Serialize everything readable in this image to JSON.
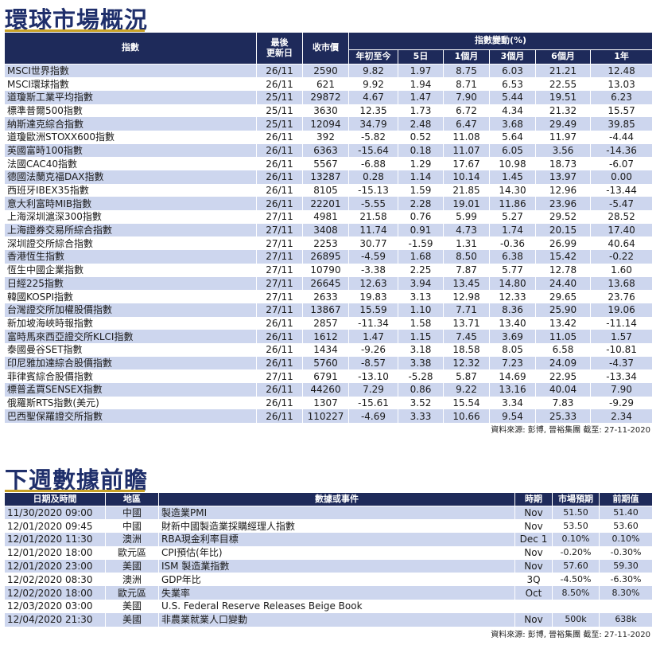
{
  "market": {
    "title": "環球市場概況",
    "headers": {
      "index": "指數",
      "updated_line1": "最後",
      "updated_line2": "更新日",
      "close": "收市價",
      "change_group": "指數變動(%)",
      "periods": [
        "年初至今",
        "5日",
        "1個月",
        "3個月",
        "6個月",
        "1年"
      ]
    },
    "rows": [
      [
        "MSCI世界指數",
        "26/11",
        "2590",
        "9.82",
        "1.97",
        "8.75",
        "6.03",
        "21.21",
        "12.48"
      ],
      [
        "MSCI環球指數",
        "26/11",
        "621",
        "9.92",
        "1.94",
        "8.71",
        "6.53",
        "22.55",
        "13.03"
      ],
      [
        "道瓊斯工業平均指數",
        "25/11",
        "29872",
        "4.67",
        "1.47",
        "7.90",
        "5.44",
        "19.51",
        "6.23"
      ],
      [
        "標準普爾500指數",
        "25/11",
        "3630",
        "12.35",
        "1.73",
        "6.72",
        "4.34",
        "21.32",
        "15.57"
      ],
      [
        "納斯達克綜合指數",
        "25/11",
        "12094",
        "34.79",
        "2.48",
        "6.47",
        "3.68",
        "29.49",
        "39.85"
      ],
      [
        "道瓊歐洲STOXX600指數",
        "26/11",
        "392",
        "-5.82",
        "0.52",
        "11.08",
        "5.64",
        "11.97",
        "-4.44"
      ],
      [
        "英國富時100指數",
        "26/11",
        "6363",
        "-15.64",
        "0.18",
        "11.07",
        "6.05",
        "3.56",
        "-14.36"
      ],
      [
        "法國CAC40指數",
        "26/11",
        "5567",
        "-6.88",
        "1.29",
        "17.67",
        "10.98",
        "18.73",
        "-6.07"
      ],
      [
        "德國法蘭克福DAX指數",
        "26/11",
        "13287",
        "0.28",
        "1.14",
        "10.14",
        "1.45",
        "13.97",
        "0.00"
      ],
      [
        "西班牙IBEX35指數",
        "26/11",
        "8105",
        "-15.13",
        "1.59",
        "21.85",
        "14.30",
        "12.96",
        "-13.44"
      ],
      [
        "意大利富時MIB指數",
        "26/11",
        "22201",
        "-5.55",
        "2.28",
        "19.01",
        "11.86",
        "23.96",
        "-5.47"
      ],
      [
        "上海深圳滬深300指數",
        "27/11",
        "4981",
        "21.58",
        "0.76",
        "5.99",
        "5.27",
        "29.52",
        "28.52"
      ],
      [
        "上海證券交易所綜合指數",
        "27/11",
        "3408",
        "11.74",
        "0.91",
        "4.73",
        "1.74",
        "20.15",
        "17.40"
      ],
      [
        "深圳證交所綜合指數",
        "27/11",
        "2253",
        "30.77",
        "-1.59",
        "1.31",
        "-0.36",
        "26.99",
        "40.64"
      ],
      [
        "香港恆生指數",
        "27/11",
        "26895",
        "-4.59",
        "1.68",
        "8.50",
        "6.38",
        "15.42",
        "-0.22"
      ],
      [
        "恆生中國企業指數",
        "27/11",
        "10790",
        "-3.38",
        "2.25",
        "7.87",
        "5.77",
        "12.78",
        "1.60"
      ],
      [
        "日經225指數",
        "27/11",
        "26645",
        "12.63",
        "3.94",
        "13.45",
        "14.80",
        "24.40",
        "13.68"
      ],
      [
        "韓國KOSPI指數",
        "27/11",
        "2633",
        "19.83",
        "3.13",
        "12.98",
        "12.33",
        "29.65",
        "23.76"
      ],
      [
        "台灣證交所加權股價指數",
        "27/11",
        "13867",
        "15.59",
        "1.10",
        "7.71",
        "8.36",
        "25.90",
        "19.06"
      ],
      [
        "新加坡海峽時報指數",
        "26/11",
        "2857",
        "-11.34",
        "1.58",
        "13.71",
        "13.40",
        "13.42",
        "-11.14"
      ],
      [
        "富時馬來西亞證交所KLCI指數",
        "26/11",
        "1612",
        "1.47",
        "1.15",
        "7.45",
        "3.69",
        "11.05",
        "1.57"
      ],
      [
        "泰國曼谷SET指數",
        "26/11",
        "1434",
        "-9.26",
        "3.18",
        "18.58",
        "8.05",
        "6.58",
        "-10.81"
      ],
      [
        "印尼雅加達綜合股價指數",
        "26/11",
        "5760",
        "-8.57",
        "3.38",
        "12.32",
        "7.23",
        "24.09",
        "-4.37"
      ],
      [
        "菲律賓綜合股價指數",
        "27/11",
        "6791",
        "-13.10",
        "-5.28",
        "5.87",
        "14.69",
        "22.95",
        "-13.34"
      ],
      [
        "標普孟買SENSEX指數",
        "26/11",
        "44260",
        "7.29",
        "0.86",
        "9.22",
        "13.16",
        "40.04",
        "7.90"
      ],
      [
        "俄羅斯RTS指數(美元)",
        "26/11",
        "1307",
        "-15.61",
        "3.52",
        "15.54",
        "3.34",
        "7.83",
        "-9.29"
      ],
      [
        "巴西聖保羅證交所指數",
        "26/11",
        "110227",
        "-4.69",
        "3.33",
        "10.66",
        "9.54",
        "25.33",
        "2.34"
      ]
    ],
    "source": "資料來源: 彭博, 晉裕集團 截至: 27-11-2020"
  },
  "events": {
    "title": "下週數據前瞻",
    "headers": [
      "日期及時間",
      "地區",
      "數據或事件",
      "時期",
      "市場預期",
      "前期值"
    ],
    "rows": [
      [
        "11/30/2020 09:00",
        "中國",
        "製造業PMI",
        "Nov",
        "51.50",
        "51.40"
      ],
      [
        "12/01/2020 09:45",
        "中國",
        "財新中國製造業採購經理人指數",
        "Nov",
        "53.50",
        "53.60"
      ],
      [
        "12/01/2020 11:30",
        "澳洲",
        "RBA現金利率目標",
        "Dec 1",
        "0.10%",
        "0.10%"
      ],
      [
        "12/01/2020 18:00",
        "歐元區",
        "CPI預估(年比)",
        "Nov",
        "-0.20%",
        "-0.30%"
      ],
      [
        "12/01/2020 23:00",
        "美國",
        "ISM 製造業指數",
        "Nov",
        "57.60",
        "59.30"
      ],
      [
        "12/02/2020 08:30",
        "澳洲",
        "GDP年比",
        "3Q",
        "-4.50%",
        "-6.30%"
      ],
      [
        "12/02/2020 18:00",
        "歐元區",
        "失業率",
        "Oct",
        "8.50%",
        "8.30%"
      ],
      [
        "12/03/2020 03:00",
        "美國",
        "U.S. Federal Reserve Releases Beige Book",
        "",
        "",
        ""
      ],
      [
        "12/04/2020 21:30",
        "美國",
        "非農業就業人口變動",
        "Nov",
        "500k",
        "638k"
      ]
    ],
    "source": "資料來源: 彭博, 晉裕集團 截至: 27-11-2020"
  },
  "colors": {
    "header_bg": "#1e2a5a",
    "stripe": "#cdd6ee",
    "title": "#1f2f6b",
    "title_rule": "#c9a227"
  }
}
